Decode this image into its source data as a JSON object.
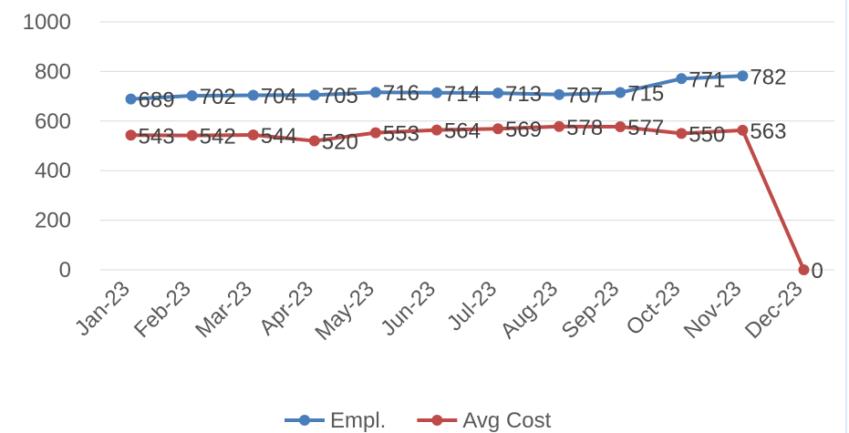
{
  "chart_data": {
    "type": "line",
    "categories": [
      "Jan-23",
      "Feb-23",
      "Mar-23",
      "Apr-23",
      "May-23",
      "Jun-23",
      "Jul-23",
      "Aug-23",
      "Sep-23",
      "Oct-23",
      "Nov-23",
      "Dec-23"
    ],
    "series": [
      {
        "name": "Empl.",
        "color": "#4a7ebb",
        "values": [
          689,
          702,
          704,
          705,
          716,
          714,
          713,
          707,
          715,
          771,
          782,
          null
        ]
      },
      {
        "name": "Avg Cost",
        "color": "#be4b48",
        "values": [
          543,
          542,
          544,
          520,
          553,
          564,
          569,
          578,
          577,
          550,
          563,
          0
        ]
      }
    ],
    "ylim": [
      0,
      1000
    ],
    "yticks": [
      0,
      200,
      400,
      600,
      800,
      1000
    ],
    "ytick_labels": [
      "0",
      "200",
      "400",
      "600",
      "800",
      "1000"
    ],
    "grid": true,
    "legend": "bottom",
    "title": "",
    "xlabel": "",
    "ylabel": ""
  }
}
